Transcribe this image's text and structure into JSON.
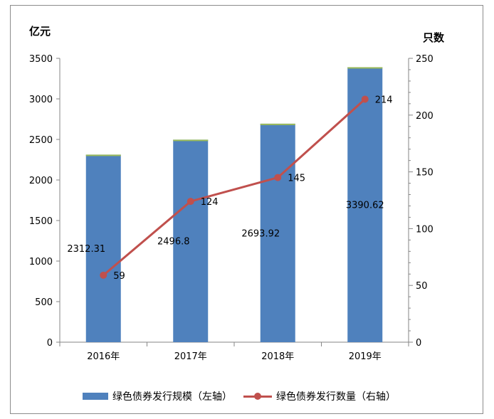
{
  "chart_data": {
    "type": "bar",
    "categories": [
      "2016年",
      "2017年",
      "2018年",
      "2019年"
    ],
    "series": [
      {
        "name": "绿色债券发行规模（左轴）",
        "type": "bar",
        "axis": "left",
        "values": [
          2312.31,
          2496.8,
          2693.92,
          3390.62
        ],
        "labels": [
          "2312.31",
          "2496.8",
          "2693.92",
          "3390.62"
        ],
        "color": "#4f81bd"
      },
      {
        "name": "绿色债券发行数量（右轴）",
        "type": "line",
        "axis": "right",
        "values": [
          59,
          124,
          145,
          214
        ],
        "labels": [
          "59",
          "124",
          "145",
          "214"
        ],
        "color": "#c0504d"
      }
    ],
    "left_axis": {
      "unit": "亿元",
      "ylim": [
        0,
        3500
      ],
      "ticks": [
        0,
        500,
        1000,
        1500,
        2000,
        2500,
        3000,
        3500
      ]
    },
    "right_axis": {
      "unit": "只数",
      "ylim": [
        0,
        250
      ],
      "ticks": [
        0,
        50,
        100,
        150,
        200,
        250
      ]
    },
    "grid": false,
    "legend": "bottom"
  }
}
